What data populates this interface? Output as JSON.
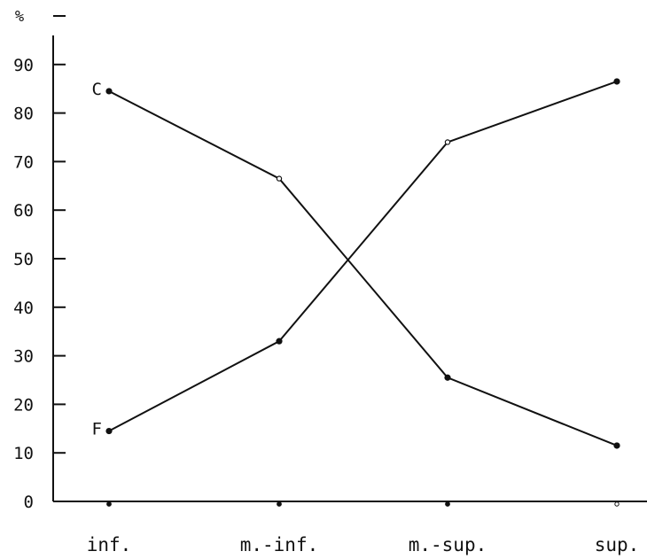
{
  "chart_data": {
    "type": "line",
    "unit_label": "%",
    "categories": [
      "inf.",
      "m.-inf.",
      "m.-sup.",
      "sup."
    ],
    "y_ticks": [
      "0",
      "10",
      "20",
      "30",
      "40",
      "50",
      "60",
      "70",
      "80",
      "90"
    ],
    "ylim": [
      0,
      100
    ],
    "grid": false,
    "series": [
      {
        "name": "C",
        "values": [
          84.5,
          66.5,
          25.5,
          11.5
        ]
      },
      {
        "name": "F",
        "values": [
          14.5,
          33,
          74,
          86.5
        ]
      }
    ],
    "colors": {
      "line": "#111111",
      "axis": "#111111"
    }
  }
}
